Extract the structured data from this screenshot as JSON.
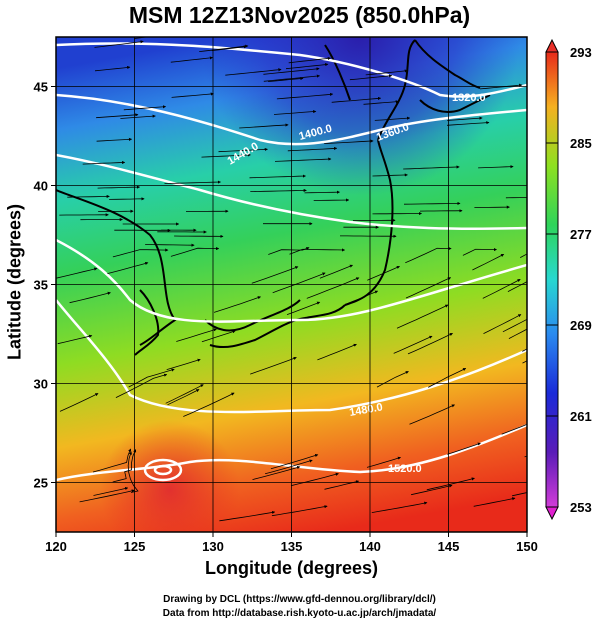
{
  "title": "MSM 12Z13Nov2025 (850.0hPa)",
  "xlabel": "Longitude (degrees)",
  "ylabel": "Latitude  (degrees)",
  "credits": {
    "line1": "Drawing by DCL (https://www.gfd-dennou.org/library/dcl/)",
    "line2": "Data from http://database.rish.kyoto-u.ac.jp/arch/jmadata/"
  },
  "chart_data": {
    "type": "heatmap",
    "xlim": [
      120,
      150
    ],
    "ylim": [
      22.5,
      47.5
    ],
    "x_ticks": [
      "120",
      "125",
      "130",
      "135",
      "140",
      "145",
      "150"
    ],
    "y_ticks": [
      "25",
      "30",
      "35",
      "40",
      "45"
    ],
    "grid": true,
    "colorbar": {
      "min": 253,
      "max": 293,
      "tick_labels": [
        "293",
        "285",
        "277",
        "269",
        "261",
        "253"
      ]
    },
    "contour_labels": [
      "1320.0",
      "1360.0",
      "1400.0",
      "1440.0",
      "1480.0",
      "1520.0"
    ],
    "colors": {
      "contour": "#ffffff",
      "coast": "#000000",
      "streamline": "#000000"
    }
  }
}
